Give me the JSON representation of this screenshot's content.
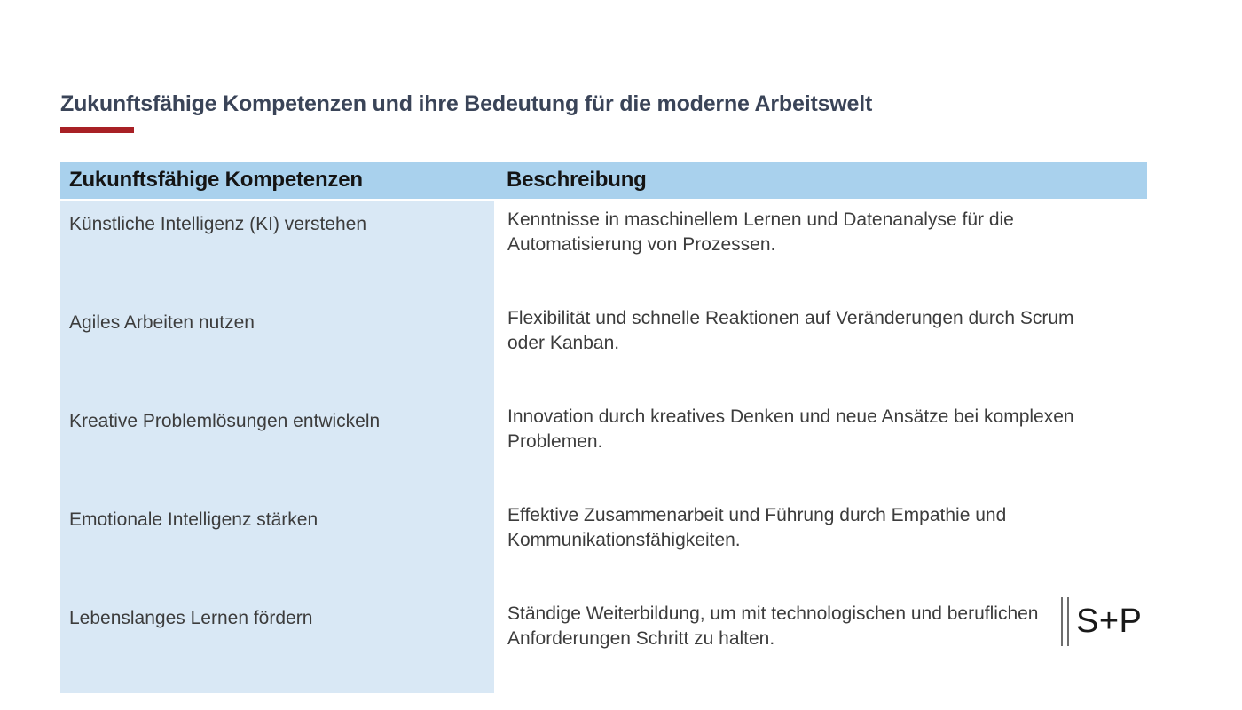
{
  "slide": {
    "title": "Zukunftsfähige Kompetenzen und ihre Bedeutung für die moderne Arbeitswelt"
  },
  "colors": {
    "title": "#3a4458",
    "accent": "#a82025",
    "header_bg": "#a9d1ed",
    "col1_bg": "#d9e8f5"
  },
  "table": {
    "header": {
      "col1": "Zukunftsfähige Kompetenzen",
      "col2": "Beschreibung"
    },
    "rows": [
      {
        "competency": "Künstliche Intelligenz (KI) verstehen",
        "description": "Kenntnisse in maschinellem Lernen und Datenanalyse für die\nAutomatisierung von Prozessen."
      },
      {
        "competency": "Agiles Arbeiten nutzen",
        "description": "Flexibilität und schnelle Reaktionen auf Veränderungen durch Scrum\noder Kanban."
      },
      {
        "competency": "Kreative Problemlösungen entwickeln",
        "description": "Innovation durch kreatives Denken und neue Ansätze bei komplexen\nProblemen."
      },
      {
        "competency": "Emotionale Intelligenz stärken",
        "description": "Effektive Zusammenarbeit und Führung durch Empathie und\nKommunikationsfähigkeiten."
      },
      {
        "competency": "Lebenslanges Lernen fördern",
        "description": "Ständige Weiterbildung, um mit technologischen und beruflichen\nAnforderungen Schritt zu halten."
      }
    ]
  },
  "logo": {
    "text": "S+P"
  }
}
